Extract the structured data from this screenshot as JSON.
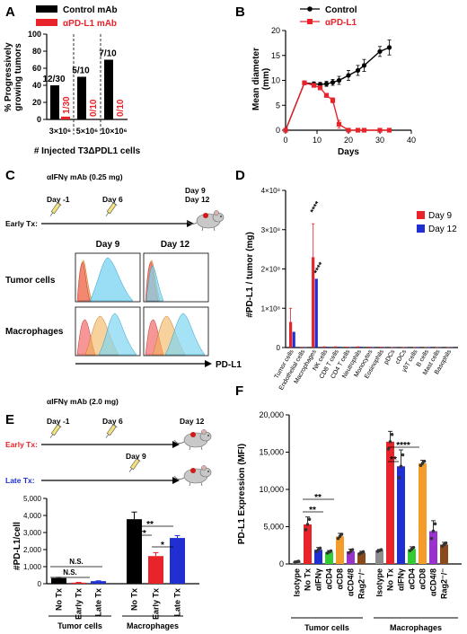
{
  "panels": {
    "A": {
      "letter": "A",
      "legend": [
        "Control mAb",
        "αPD-L1 mAb"
      ],
      "ylabel_lines": [
        "% Progressively",
        "growing tumors"
      ],
      "xtitle": "# Injected T3ΔPDL1 cells",
      "colors": {
        "control": "#000000",
        "pdl1": "#e8232a"
      }
    },
    "B": {
      "letter": "B",
      "legend": [
        "Control",
        "αPD-L1"
      ],
      "ylabel_lines": [
        "Mean diameter",
        "(mm)"
      ],
      "xlabel": "Days"
    },
    "C": {
      "letter": "C",
      "mab": "αIFNγ mAb (0.25 mg)",
      "day_m1": "Day -1",
      "day6": "Day 6",
      "day9": "Day 9",
      "day12": "Day 12",
      "early_tx": "Early Tx:",
      "col_day9": "Day 9",
      "col_day12": "Day 12",
      "row_tumor": "Tumor cells",
      "row_mac": "Macrophages",
      "xaxis": "PD-L1"
    },
    "D": {
      "letter": "D",
      "ylabel": "#PD-L1 / tumor (mg)",
      "legend": [
        "Day 9",
        "Day 12"
      ],
      "colors": {
        "day9": "#e8232a",
        "day12": "#1f2fd1"
      }
    },
    "E": {
      "letter": "E",
      "mab": "αIFNγ mAb (2.0 mg)",
      "day_m1": "Day -1",
      "day6": "Day 6",
      "day9": "Day 9",
      "day12": "Day 12",
      "early_tx": "Early Tx:",
      "late_tx": "Late Tx:",
      "ylabel": "#PD-L1/cell",
      "group_labels": [
        "Tumor cells",
        "Macrophages"
      ],
      "sig": [
        "N.S.",
        "N.S.",
        "****",
        "**",
        "*"
      ]
    },
    "F": {
      "letter": "F",
      "ylabel": "PD-L1 Expression (MFI)",
      "group_labels": [
        "Tumor cells",
        "Macrophages"
      ],
      "sig": [
        "**",
        "**",
        "****",
        "**"
      ]
    }
  },
  "chart_data": [
    {
      "panel": "A",
      "type": "bar",
      "categories": [
        "3×10⁶",
        "5×10⁶",
        "10×10⁶"
      ],
      "series": [
        {
          "name": "Control mAb",
          "values": [
            40,
            50,
            70
          ],
          "labels": [
            "12/30",
            "5/10",
            "7/10"
          ]
        },
        {
          "name": "αPD-L1 mAb",
          "values": [
            3.3,
            0,
            0
          ],
          "labels": [
            "1/30",
            "0/10",
            "0/10"
          ]
        }
      ],
      "ylim": [
        0,
        100
      ],
      "yticks": [
        "0",
        "20",
        "40",
        "60",
        "80",
        "100"
      ]
    },
    {
      "panel": "B",
      "type": "line",
      "series": [
        {
          "name": "Control",
          "x": [
            0,
            6,
            9,
            11,
            13,
            15,
            17,
            20,
            23,
            25,
            30,
            33
          ],
          "y": [
            0,
            9.5,
            9.3,
            9.2,
            9.3,
            9.6,
            10,
            11,
            12,
            13,
            15.8,
            16.6
          ],
          "err": [
            0,
            0.2,
            0.4,
            0.4,
            0.5,
            0.6,
            0.8,
            1,
            1,
            1.2,
            1,
            1.5
          ]
        },
        {
          "name": "αPD-L1",
          "x": [
            0,
            6,
            9,
            11,
            13,
            15,
            17,
            20,
            23,
            25,
            30,
            33
          ],
          "y": [
            0,
            9.5,
            9,
            8.5,
            7,
            6,
            1.2,
            0,
            0,
            0,
            0,
            0
          ],
          "err": [
            0,
            0.2,
            0.3,
            0.4,
            0.4,
            0.5,
            0.8,
            0,
            0,
            0,
            0,
            0
          ]
        }
      ],
      "xlim": [
        0,
        40
      ],
      "ylim": [
        0,
        20
      ],
      "xticks": [
        "0",
        "10",
        "20",
        "30",
        "40"
      ],
      "yticks": [
        "0",
        "5",
        "10",
        "15",
        "20"
      ]
    },
    {
      "panel": "D",
      "type": "bar",
      "categories": [
        "Tumor cells",
        "Endothelial cells",
        "Macrophages",
        "NK cells",
        "CD8 T cells",
        "CD4 T cells",
        "Neutrophils",
        "Monocytes",
        "Eosinophils",
        "pDCs",
        "cDCs",
        "γδT cells",
        "B cells",
        "Mast cells",
        "Basophils"
      ],
      "series": [
        {
          "name": "Day 9",
          "values": [
            65000000.0,
            1500000.0,
            230000000.0,
            3000000.0,
            3000000.0,
            2000000.0,
            3000000.0,
            2000000.0,
            2000000.0,
            1000000.0,
            1000000.0,
            1000000.0,
            1000000.0,
            1000000.0,
            1000000.0
          ],
          "err": [
            35000000.0,
            0,
            85000000.0,
            0,
            0,
            0,
            0,
            0,
            0,
            0,
            0,
            0,
            0,
            0,
            0
          ]
        },
        {
          "name": "Day 12",
          "values": [
            40000000.0,
            1000000.0,
            175000000.0,
            2000000.0,
            2000000.0,
            1000000.0,
            2000000.0,
            1000000.0,
            1000000.0,
            1000000.0,
            1000000.0,
            1000000.0,
            1000000.0,
            1000000.0,
            1000000.0
          ],
          "err": [
            0,
            0,
            0,
            0,
            0,
            0,
            0,
            0,
            0,
            0,
            0,
            0,
            0,
            0,
            0
          ]
        }
      ],
      "annotations": [
        "****",
        "****"
      ],
      "ylim": [
        0,
        400000000
      ],
      "yticks": [
        "0",
        "1×10⁸",
        "2×10⁸",
        "3×10⁸",
        "4×10⁸"
      ]
    },
    {
      "panel": "E",
      "type": "bar",
      "categories": [
        "No Tx",
        "Early Tx",
        "Late Tx",
        "No Tx",
        "Early Tx",
        "Late Tx"
      ],
      "values": [
        330,
        60,
        150,
        3780,
        1620,
        2680
      ],
      "err": [
        40,
        20,
        20,
        420,
        200,
        140
      ],
      "colors": [
        "#000000",
        "#e8232a",
        "#1f2fd1",
        "#000000",
        "#e8232a",
        "#1f2fd1"
      ],
      "ylim": [
        0,
        5000
      ],
      "yticks": [
        "0",
        "1,000",
        "2,000",
        "3,000",
        "4,000",
        "5,000"
      ]
    },
    {
      "panel": "F",
      "type": "bar",
      "categories": [
        "Isotype",
        "No Tx",
        "αIFNγ",
        "αCD4",
        "αCD8",
        "αCD4/8",
        "Rag2⁻/⁻",
        "Isotype",
        "No Tx",
        "αIFNγ",
        "αCD4",
        "αCD8",
        "αCD4/8",
        "Rag2⁻/⁻"
      ],
      "values": [
        300,
        5300,
        1900,
        1600,
        3700,
        1700,
        1500,
        1800,
        16400,
        13100,
        2000,
        13500,
        4400,
        2600
      ],
      "err": [
        80,
        1000,
        300,
        200,
        400,
        300,
        200,
        150,
        1400,
        2200,
        300,
        400,
        1400,
        300
      ],
      "colors": [
        "#8c8c8c",
        "#e8232a",
        "#1f2fd1",
        "#33cc33",
        "#f39c2a",
        "#9933cc",
        "#8b4a1c",
        "#8c8c8c",
        "#e8232a",
        "#1f2fd1",
        "#33cc33",
        "#f39c2a",
        "#9933cc",
        "#8b4a1c"
      ],
      "ylim": [
        0,
        20000
      ],
      "yticks": [
        "0",
        "5,000",
        "10,000",
        "15,000",
        "20,000"
      ]
    }
  ]
}
